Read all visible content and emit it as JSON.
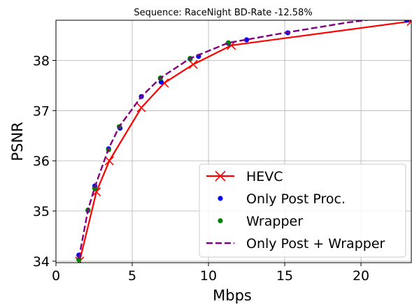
{
  "chart_data": {
    "type": "line",
    "title": "Sequence: RaceNight  BD-Rate -12.58%",
    "xlabel": "Mbps",
    "ylabel": "PSNR",
    "xlim": [
      0,
      23.3
    ],
    "ylim": [
      33.97,
      38.8
    ],
    "xticks": [
      0,
      5,
      10,
      15,
      20
    ],
    "yticks": [
      34,
      35,
      36,
      37,
      38
    ],
    "grid": true,
    "legend_position": "lower-right",
    "series": [
      {
        "name": "HEVC",
        "style": "line-x",
        "color": "#ff0000",
        "x": [
          1.55,
          2.65,
          3.5,
          5.6,
          7.1,
          9.0,
          11.5,
          23.3
        ],
        "y": [
          34.0,
          35.38,
          36.0,
          37.06,
          37.55,
          37.92,
          38.3,
          38.78
        ]
      },
      {
        "name": "Only Post Proc.",
        "style": "dot",
        "color": "#0000ff",
        "x": [
          1.5,
          2.1,
          2.55,
          3.45,
          4.2,
          5.6,
          6.9,
          8.8,
          9.35,
          11.3,
          12.5,
          15.2,
          23.0
        ],
        "y": [
          34.12,
          35.01,
          35.5,
          36.24,
          36.65,
          37.28,
          37.57,
          38.03,
          38.08,
          38.34,
          38.41,
          38.55,
          38.8
        ]
      },
      {
        "name": "Wrapper",
        "style": "dot",
        "color": "#008000",
        "x": [
          1.5,
          2.1,
          2.55,
          3.45,
          4.15,
          6.85,
          8.8,
          11.3
        ],
        "y": [
          34.03,
          35.02,
          35.45,
          36.22,
          36.68,
          37.65,
          38.04,
          38.35
        ]
      },
      {
        "name": "Only Post + Wrapper",
        "style": "dashed",
        "color": "#800080",
        "x": [
          1.5,
          2.1,
          2.55,
          3.45,
          4.15,
          5.6,
          6.85,
          8.8,
          11.3,
          15.0,
          19.0,
          23.3
        ],
        "y": [
          34.05,
          35.02,
          35.48,
          36.24,
          36.68,
          37.28,
          37.65,
          38.04,
          38.35,
          38.55,
          38.75,
          38.92
        ]
      }
    ]
  }
}
